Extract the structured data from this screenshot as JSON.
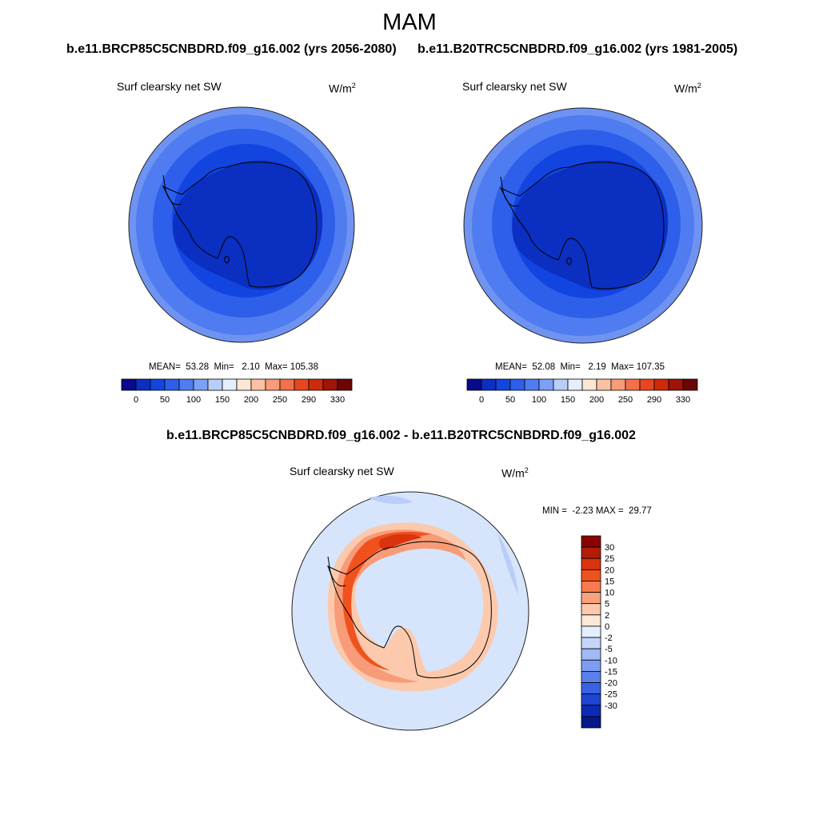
{
  "title": "MAM",
  "panels": [
    {
      "case_title": "b.e11.BRCP85C5CNBDRD.f09_g16.002 (yrs 2056-2080)",
      "variable": "Surf clearsky net SW",
      "units_base": "W/m",
      "units_exp": "2",
      "stats": {
        "mean_label": "MEAN=",
        "mean": "53.28",
        "min_label": "Min=",
        "min": "2.10",
        "max_label": "Max=",
        "max": "105.38"
      }
    },
    {
      "case_title": "b.e11.B20TRC5CNBDRD.f09_g16.002 (yrs 1981-2005)",
      "variable": "Surf clearsky net SW",
      "units_base": "W/m",
      "units_exp": "2",
      "stats": {
        "mean_label": "MEAN=",
        "mean": "52.08",
        "min_label": "Min=",
        "min": "2.19",
        "max_label": "Max=",
        "max": "107.35"
      }
    }
  ],
  "diff_panel": {
    "case_title": "b.e11.BRCP85C5CNBDRD.f09_g16.002 - b.e11.B20TRC5CNBDRD.f09_g16.002",
    "variable": "Surf clearsky net SW",
    "units_base": "W/m",
    "units_exp": "2",
    "stats": {
      "min_label": "MIN =",
      "min": "-2.23",
      "max_label": "MAX =",
      "max": "29.77"
    }
  },
  "colorbar_top": {
    "colors": [
      "#0a0a8c",
      "#0b2fc0",
      "#1245e0",
      "#2d5fea",
      "#4f7cf0",
      "#7da0f5",
      "#b8cdf8",
      "#e4eefc",
      "#fde6d4",
      "#fbc1a2",
      "#f79b78",
      "#f2704a",
      "#e8461f",
      "#cc2b0c",
      "#9e1408",
      "#6b0606"
    ],
    "labels": [
      "0",
      "50",
      "100",
      "150",
      "200",
      "250",
      "290",
      "330"
    ]
  },
  "colorbar_diff": {
    "colors": [
      "#8b0000",
      "#b31c05",
      "#d9340d",
      "#f0521e",
      "#f77a4c",
      "#f9a17c",
      "#fcc9ac",
      "#fde7d6",
      "#e4eefc",
      "#c4d6fa",
      "#9fbaf6",
      "#7b9df2",
      "#5a80ec",
      "#3a62e4",
      "#1f45d4",
      "#0d2ab4",
      "#07188c"
    ],
    "labels": [
      "30",
      "25",
      "20",
      "15",
      "10",
      "5",
      "2",
      "0",
      "-2",
      "-5",
      "-10",
      "-15",
      "-20",
      "-25",
      "-30"
    ]
  },
  "map_colors": {
    "ring_outer": "#6f93f1",
    "ring_mid": "#4f7cf0",
    "ring_inner": "#2d5fea",
    "ring_deep": "#1245e0",
    "interior": "#0b2fc0",
    "diff_bg": "#d6e5fb",
    "diff_band_light": "#fcc9ac",
    "diff_band_mid": "#f79b78",
    "diff_band_strong": "#f0521e",
    "diff_band_peak": "#d9340d",
    "diff_neg": "#b8cdf8",
    "coast": "#000000"
  }
}
